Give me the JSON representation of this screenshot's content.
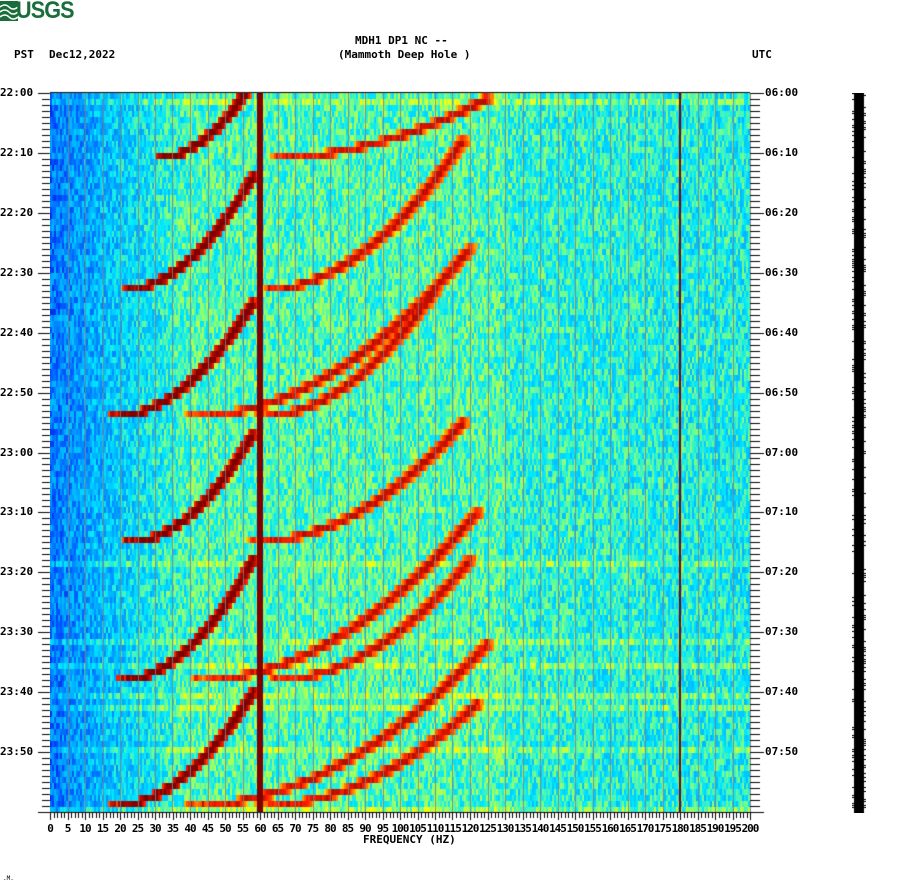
{
  "header": {
    "logo_text": "USGS",
    "station_line": "MDH1 DP1 NC --",
    "station_name": "(Mammoth Deep Hole )",
    "left_timezone": "PST",
    "date": "Dec12,2022",
    "right_timezone": "UTC"
  },
  "footer": {
    "mark": ".M."
  },
  "colors": {
    "brand_green": "#1a6e3c",
    "colormap": [
      "#0000c8",
      "#0050ff",
      "#00a0ff",
      "#00e8ff",
      "#80ff80",
      "#ffff00",
      "#ff9000",
      "#ff2000",
      "#800000"
    ]
  },
  "chart_data": {
    "type": "heatmap",
    "title": "MDH1 DP1 NC -- (Mammoth Deep Hole )",
    "subtitle": "Spectrogram, Dec12,2022",
    "xlabel": "FREQUENCY (HZ)",
    "ylabel_left": "PST",
    "ylabel_right": "UTC",
    "xlim": [
      0,
      200
    ],
    "x_ticks": [
      0,
      5,
      10,
      15,
      20,
      25,
      30,
      35,
      40,
      45,
      50,
      55,
      60,
      65,
      70,
      75,
      80,
      85,
      90,
      95,
      100,
      105,
      110,
      115,
      120,
      125,
      130,
      135,
      140,
      145,
      150,
      155,
      160,
      165,
      170,
      175,
      180,
      185,
      190,
      195,
      200
    ],
    "x_tick_labels": [
      "0",
      "5",
      "10",
      "15",
      "20",
      "25",
      "30",
      "35",
      "40",
      "45",
      "50",
      "55",
      "60",
      "65",
      "70",
      "75",
      "80",
      "85",
      "90",
      "95",
      "100",
      "105",
      "110",
      "115",
      "120",
      "125",
      "130",
      "135",
      "140",
      "145",
      "150",
      "155",
      "160",
      "165",
      "170",
      "175",
      "180",
      "185",
      "190",
      "195",
      "200"
    ],
    "y_left_ticks": [
      "22:00",
      "22:10",
      "22:20",
      "22:30",
      "22:40",
      "22:50",
      "23:00",
      "23:10",
      "23:20",
      "23:30",
      "23:40",
      "23:50"
    ],
    "y_right_ticks": [
      "06:00",
      "06:10",
      "06:20",
      "06:30",
      "06:40",
      "06:50",
      "07:00",
      "07:10",
      "07:20",
      "07:30",
      "07:40",
      "07:50"
    ],
    "time_span_minutes": 120,
    "minor_tick_minutes": 1,
    "persistent_lines_hz": [
      60,
      180
    ],
    "vertical_grid_hz": [
      5,
      10,
      15,
      20,
      25,
      30,
      35,
      40,
      45,
      50,
      55,
      60,
      65,
      70,
      75,
      80,
      85,
      90,
      95,
      100,
      105,
      110,
      115,
      120,
      125,
      130,
      135,
      140,
      145,
      150,
      155,
      160,
      165,
      170,
      175,
      180,
      185,
      190,
      195
    ],
    "chirp_events": [
      {
        "start_min": 11,
        "end_min": 0,
        "f_start": 30,
        "f_end": 56
      },
      {
        "start_min": 33,
        "end_min": 14,
        "f_start": 20,
        "f_end": 58
      },
      {
        "start_min": 54,
        "end_min": 35,
        "f_start": 18,
        "f_end": 58
      },
      {
        "start_min": 75,
        "end_min": 57,
        "f_start": 22,
        "f_end": 58
      },
      {
        "start_min": 98,
        "end_min": 78,
        "f_start": 20,
        "f_end": 58
      },
      {
        "start_min": 119,
        "end_min": 100,
        "f_start": 18,
        "f_end": 58
      }
    ],
    "harmonic_bands": [
      {
        "start_min": 11,
        "end_min": 1,
        "f_start": 60,
        "f_end": 125
      },
      {
        "start_min": 33,
        "end_min": 8,
        "f_start": 60,
        "f_end": 118
      },
      {
        "start_min": 54,
        "end_min": 26,
        "f_start": 40,
        "f_end": 120
      },
      {
        "start_min": 54,
        "end_min": 33,
        "f_start": 60,
        "f_end": 110
      },
      {
        "start_min": 75,
        "end_min": 55,
        "f_start": 58,
        "f_end": 118
      },
      {
        "start_min": 98,
        "end_min": 70,
        "f_start": 42,
        "f_end": 122
      },
      {
        "start_min": 98,
        "end_min": 78,
        "f_start": 64,
        "f_end": 120
      },
      {
        "start_min": 119,
        "end_min": 92,
        "f_start": 40,
        "f_end": 125
      },
      {
        "start_min": 119,
        "end_min": 102,
        "f_start": 60,
        "f_end": 122
      }
    ],
    "grid": true,
    "legend": "none"
  }
}
